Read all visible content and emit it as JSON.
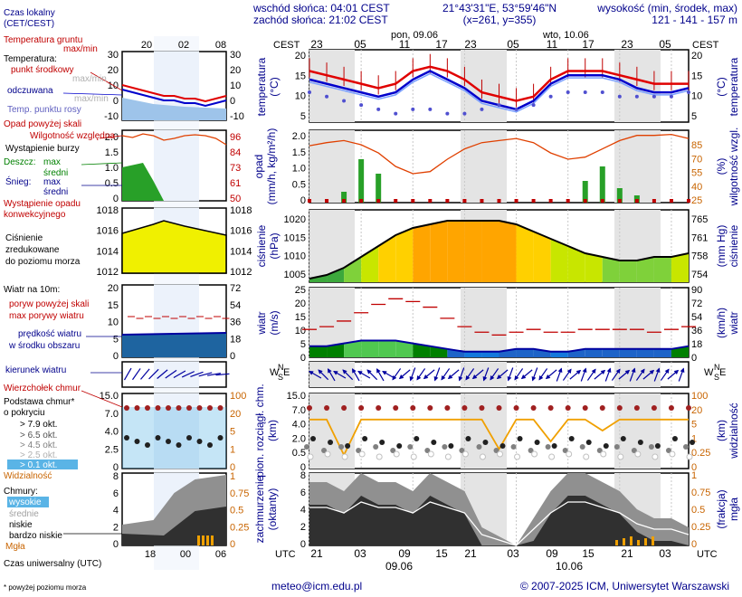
{
  "header": {
    "sunrise": "wschód słońca: 04:01 CEST",
    "sunset": "zachód słońca: 21:02 CEST",
    "coords": "21°43'31\"E, 53°59'46\"N",
    "grid": "(x=261,  y=355)",
    "elev_label": "wysokość (min, środek, max)",
    "elev_values": "121 - 141 - 157 m",
    "day1": "pon, 09.06",
    "day2": "wto, 10.06",
    "tz": "CEST",
    "tz_bottom": "UTC"
  },
  "legend": {
    "local_time": "Czas lokalny",
    "local_time_sub": "(CET/CEST)",
    "ground_temp": "Temperatura gruntu",
    "ground_temp_sub": "max/min",
    "temperature": "Temperatura:",
    "mid_point": "punkt środkowy",
    "mid_point_sub": "max/min",
    "perceived": "odczuwana",
    "perceived_sub": "max/min",
    "dew_point": "Temp. punktu rosy",
    "precip_over": "Opad powyżej skali",
    "humidity": "Wilgotność względna",
    "storm": "Wystąpienie burzy",
    "rain": "Deszcz:",
    "rain_max": "max",
    "rain_mean": "średni",
    "snow": "Śnieg:",
    "snow_max": "max",
    "snow_mean": "średni",
    "conv1": "Wystąpienie opadu",
    "conv2": "konwekcyjnego",
    "slp1": "Ciśnienie",
    "slp2": "zredukowane",
    "slp3": "do poziomu morza",
    "wind": "Wiatr na 10m:",
    "gust_over": "poryw powyżej skali",
    "gust_max": "max porywy wiatru",
    "wind_mean1": "prędkość wiatru",
    "wind_mean2": "w środku obszaru",
    "wind_dir": "kierunek wiatru",
    "cb_top": "Wierzchołek chmur",
    "base1": "Podstawa chmur*",
    "base2": "o pokryciu",
    "okt": [
      "> 7.9 okt.",
      "> 6.5 okt.",
      "> 4.5 okt.",
      "> 2.5 okt.",
      "> 0.1 okt."
    ],
    "visibility": "Widzialność",
    "clouds": "Chmury:",
    "high": "wysokie",
    "mid": "średnie",
    "low": "niskie",
    "vlow": "bardzo niskie",
    "fog": "Mgła",
    "utc": "Czas uniwersalny (UTC)",
    "footnote": "* powyżej poziomu morza"
  },
  "axes": {
    "temp_left": [
      "20",
      "15",
      "10",
      "5"
    ],
    "temp_right": [
      "20",
      "15",
      "10",
      "5"
    ],
    "temp_title": "temperatura",
    "temp_unit": "(°C)",
    "precip_left": [
      "2.0",
      "1.5",
      "1.0",
      "0.5",
      "0"
    ],
    "precip_right": [
      "85",
      "70",
      "55",
      "40",
      "25"
    ],
    "precip_title": "opad",
    "precip_unit": "(mm/h, kg/m²/h)",
    "hum_title": "wilgotność wzgl.",
    "hum_unit": "(%)",
    "slp_left": [
      "1020",
      "1015",
      "1010",
      "1005"
    ],
    "slp_right": [
      "765",
      "761",
      "758",
      "754"
    ],
    "slp_title": "ciśnienie",
    "slp_unit": "(hPa)",
    "slp_unit_r": "(mm Hg)",
    "wind_left": [
      "25",
      "20",
      "15",
      "10",
      "5",
      "0"
    ],
    "wind_right": [
      "90",
      "72",
      "54",
      "36",
      "18",
      "0"
    ],
    "wind_title": "wiatr",
    "wind_unit": "(m/s)",
    "wind_unit_r": "(km/h)",
    "cloud_left": [
      "15.0",
      "7.0",
      "4.0",
      "2.0",
      "0.5",
      "0"
    ],
    "cloud_right": [
      "100",
      "20",
      "5",
      "1",
      "0.25",
      "0"
    ],
    "cloud_title": "pion. rozciągł. chm.",
    "cloud_unit": "(km)",
    "vis_title": "widzialność",
    "vis_unit": "(km)",
    "cov_left": [
      "8",
      "6",
      "4",
      "2",
      "0"
    ],
    "cov_right": [
      "1",
      "0.75",
      "0.5",
      "0.25",
      "0"
    ],
    "cov_title": "zachmurzenie",
    "cov_unit": "(oktanty)",
    "fog_title": "mgła",
    "fog_unit": "(frakcja)",
    "mini_temp": [
      "30",
      "20",
      "10",
      "0",
      "-10"
    ],
    "mini_hum": [
      "96",
      "84",
      "73",
      "61",
      "50"
    ],
    "mini_pr": [
      "2.0",
      "1.5",
      "1.0",
      "0.5",
      "0"
    ],
    "mini_slp_l": [
      "1018",
      "1016",
      "1014",
      "1012"
    ],
    "mini_slp_r": [
      "1018",
      "1016",
      "1014",
      "1012"
    ],
    "mini_wind_l": [
      "20",
      "15",
      "10",
      "5",
      "0"
    ],
    "mini_wind_r": [
      "72",
      "54",
      "36",
      "18",
      "0"
    ],
    "mini_cl_l": [
      "15.0",
      "7.0",
      "4.0",
      "2.5",
      "0"
    ],
    "mini_cl_r": [
      "100",
      "20",
      "5",
      "1",
      "0"
    ],
    "mini_cov_l": [
      "8",
      "6",
      "4",
      "2",
      "0"
    ],
    "mini_cov_r": [
      "1",
      "0.75",
      "0.5",
      "0.25",
      "0"
    ],
    "mini_hours_top": [
      "20",
      "02",
      "08"
    ],
    "mini_hours_bot": [
      "18",
      "00",
      "06"
    ]
  },
  "footer": {
    "email": "meteo@icm.edu.pl",
    "copyright": "© 2007-2025 ICM, Uniwersytet Warszawski"
  },
  "chart_data": {
    "type": "line",
    "x_hours_cest": [
      "23",
      "05",
      "11",
      "17",
      "23",
      "05",
      "11",
      "17",
      "23",
      "05"
    ],
    "x_hours_utc": [
      "21",
      "03",
      "09",
      "15",
      "21",
      "03",
      "09",
      "15",
      "21",
      "03"
    ],
    "date_labels": [
      "09.06",
      "10.06"
    ],
    "series": [
      {
        "name": "punkt środkowy",
        "panel": "temperatura",
        "values": [
          15,
          14,
          13,
          12,
          11,
          12,
          15,
          16,
          15,
          13,
          10,
          9,
          8,
          9,
          13,
          15,
          15,
          15,
          14,
          13,
          12,
          12,
          12
        ]
      },
      {
        "name": "odczuwana",
        "panel": "temperatura",
        "values": [
          13,
          12,
          11,
          10,
          9,
          10,
          13,
          15,
          13,
          11,
          8,
          7,
          6,
          8,
          12,
          14,
          14,
          14,
          13,
          11,
          10,
          10,
          11
        ]
      },
      {
        "name": "Temp. punktu rosy",
        "panel": "temperatura",
        "values": [
          10,
          9,
          8,
          7,
          6,
          5,
          6,
          6,
          5,
          5,
          6,
          7,
          6,
          7,
          9,
          10,
          10,
          10,
          9,
          9,
          9,
          9,
          10
        ]
      },
      {
        "name": "Wilgotność względna",
        "panel": "opad",
        "values": [
          75,
          78,
          80,
          76,
          68,
          55,
          48,
          50,
          62,
          72,
          78,
          80,
          82,
          78,
          68,
          62,
          64,
          72,
          80,
          85,
          85,
          86,
          82
        ]
      },
      {
        "name": "Ciśnienie",
        "panel": "ciśnienie",
        "values": [
          1004,
          1005,
          1007,
          1010,
          1013,
          1016,
          1018,
          1019,
          1020,
          1020,
          1020,
          1020,
          1019,
          1017,
          1015,
          1013,
          1011,
          1010,
          1009,
          1009,
          1010,
          1010,
          1011
        ]
      },
      {
        "name": "prędkość wiatru",
        "panel": "wiatr",
        "values": [
          4,
          4,
          5,
          6,
          6,
          6,
          5,
          4,
          3,
          2,
          2,
          2,
          3,
          3,
          2,
          2,
          3,
          3,
          3,
          3,
          3,
          3,
          4
        ]
      },
      {
        "name": "max porywy wiatru",
        "panel": "wiatr",
        "values": [
          10,
          11,
          13,
          16,
          19,
          21,
          20,
          18,
          14,
          11,
          9,
          8,
          9,
          10,
          9,
          9,
          10,
          10,
          10,
          10,
          9,
          10,
          11
        ]
      },
      {
        "name": "Widzialność",
        "panel": "widzialność",
        "values": [
          20,
          20,
          2,
          20,
          20,
          20,
          20,
          20,
          20,
          20,
          20,
          3,
          20,
          20,
          5,
          20,
          20,
          10,
          20,
          20,
          20,
          20,
          20
        ]
      }
    ],
    "ylim_temp": [
      3,
      20
    ],
    "ylim_pressure": [
      1003,
      1023
    ],
    "ylim_wind": [
      0,
      25
    ]
  }
}
